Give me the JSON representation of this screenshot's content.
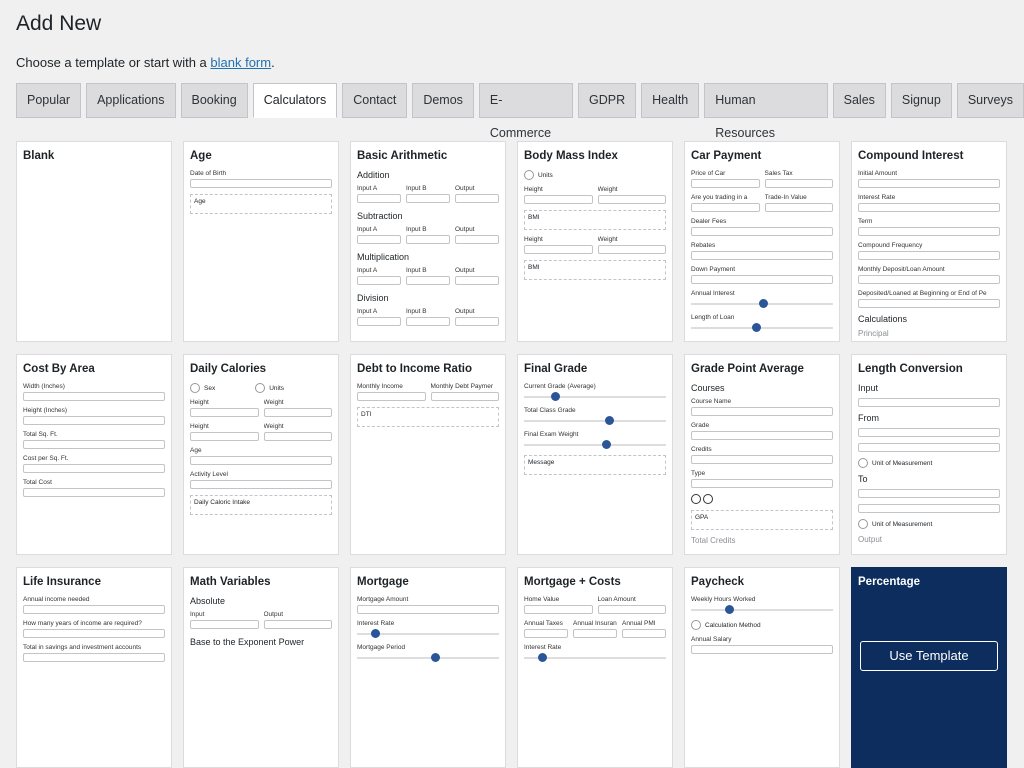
{
  "header": {
    "title": "Add New",
    "intro": "Choose a template or start with a",
    "link": "blank form",
    "end": "."
  },
  "tabs": [
    {
      "label": "Popular",
      "active": false
    },
    {
      "label": "Applications",
      "active": false
    },
    {
      "label": "Booking",
      "active": false
    },
    {
      "label": "Calculators",
      "active": true
    },
    {
      "label": "Contact",
      "active": false
    },
    {
      "label": "Demos",
      "active": false
    },
    {
      "label": "E-Commerce",
      "active": false
    },
    {
      "label": "GDPR",
      "active": false
    },
    {
      "label": "Health",
      "active": false
    },
    {
      "label": "Human Resources",
      "active": false
    },
    {
      "label": "Sales",
      "active": false
    },
    {
      "label": "Signup",
      "active": false
    },
    {
      "label": "Surveys",
      "active": false
    }
  ],
  "cards": [
    {
      "title": "Blank",
      "items": []
    },
    {
      "title": "Age",
      "items": [
        {
          "kind": "field",
          "label": "Date of Birth"
        },
        {
          "kind": "box",
          "text": "Age"
        }
      ]
    },
    {
      "title": "Basic Arithmetic",
      "items": [
        {
          "kind": "heading",
          "text": "Addition"
        },
        {
          "kind": "cols",
          "labels": [
            "Input A",
            "Input B",
            "Output"
          ]
        },
        {
          "kind": "heading",
          "text": "Subtraction"
        },
        {
          "kind": "cols",
          "labels": [
            "Input A",
            "Input B",
            "Output"
          ]
        },
        {
          "kind": "heading",
          "text": "Multiplication"
        },
        {
          "kind": "cols",
          "labels": [
            "Input A",
            "Input B",
            "Output"
          ]
        },
        {
          "kind": "heading",
          "text": "Division"
        },
        {
          "kind": "cols",
          "labels": [
            "Input A",
            "Input B",
            "Output"
          ]
        }
      ]
    },
    {
      "title": "Body Mass Index",
      "items": [
        {
          "kind": "radio",
          "text": "Units"
        },
        {
          "kind": "cols",
          "labels": [
            "Height",
            "Weight"
          ]
        },
        {
          "kind": "box",
          "text": "BMI"
        },
        {
          "kind": "cols",
          "labels": [
            "Height",
            "Weight"
          ]
        },
        {
          "kind": "box",
          "text": "BMI"
        }
      ]
    },
    {
      "title": "Car Payment",
      "items": [
        {
          "kind": "cols",
          "labels": [
            "Price of Car",
            "Sales Tax"
          ]
        },
        {
          "kind": "cols",
          "labels": [
            "Are you trading in a",
            "Trade-In Value"
          ]
        },
        {
          "kind": "field",
          "label": "Dealer Fees"
        },
        {
          "kind": "field",
          "label": "Rebates"
        },
        {
          "kind": "field",
          "label": "Down Payment"
        },
        {
          "kind": "slider",
          "label": "Annual Interest"
        },
        {
          "kind": "slider",
          "label": "Length of Loan"
        }
      ]
    },
    {
      "title": "Compound Interest",
      "items": [
        {
          "kind": "field",
          "label": "Initial Amount"
        },
        {
          "kind": "field",
          "label": "Interest Rate"
        },
        {
          "kind": "field",
          "label": "Term"
        },
        {
          "kind": "field",
          "label": "Compound Frequency"
        },
        {
          "kind": "field",
          "label": "Monthly Deposit/Loan Amount"
        },
        {
          "kind": "field",
          "label": "Deposited/Loaned at Beginning or End of Pe"
        },
        {
          "kind": "heading",
          "text": "Calculations"
        },
        {
          "kind": "faded",
          "text": "Principal"
        }
      ]
    },
    {
      "title": "Cost By Area",
      "items": [
        {
          "kind": "field",
          "label": "Width (Inches)"
        },
        {
          "kind": "field",
          "label": "Height (Inches)"
        },
        {
          "kind": "field",
          "label": "Total Sq. Ft."
        },
        {
          "kind": "field",
          "label": "Cost per Sq. Ft."
        },
        {
          "kind": "field",
          "label": "Total Cost"
        }
      ]
    },
    {
      "title": "Daily Calories",
      "items": [
        {
          "kind": "radios",
          "texts": [
            "Sex",
            "Units"
          ]
        },
        {
          "kind": "cols",
          "labels": [
            "Height",
            "Weight"
          ]
        },
        {
          "kind": "cols",
          "labels": [
            "Height",
            "Weight"
          ]
        },
        {
          "kind": "field",
          "label": "Age"
        },
        {
          "kind": "field",
          "label": "Activity Level"
        },
        {
          "kind": "box",
          "text": "Daily Caloric Intake"
        }
      ]
    },
    {
      "title": "Debt to Income Ratio",
      "items": [
        {
          "kind": "cols",
          "labels": [
            "Monthly Income",
            "Monthly Debt Paymer"
          ]
        },
        {
          "kind": "box",
          "text": "DTI"
        }
      ]
    },
    {
      "title": "Final Grade",
      "items": [
        {
          "kind": "slider",
          "label": "Current Grade (Average)"
        },
        {
          "kind": "slider",
          "label": "Total Class Grade"
        },
        {
          "kind": "slider",
          "label": "Final Exam Weight"
        },
        {
          "kind": "box",
          "text": "Message"
        }
      ]
    },
    {
      "title": "Grade Point Average",
      "items": [
        {
          "kind": "heading",
          "text": "Courses"
        },
        {
          "kind": "field",
          "label": "Course Name"
        },
        {
          "kind": "field",
          "label": "Grade"
        },
        {
          "kind": "field",
          "label": "Credits"
        },
        {
          "kind": "field",
          "label": "Type"
        },
        {
          "kind": "icons"
        },
        {
          "kind": "box",
          "text": "GPA"
        },
        {
          "kind": "faded",
          "text": "Total Credits"
        }
      ]
    },
    {
      "title": "Length Conversion",
      "items": [
        {
          "kind": "heading",
          "text": "Input"
        },
        {
          "kind": "input"
        },
        {
          "kind": "heading",
          "text": "From"
        },
        {
          "kind": "input"
        },
        {
          "kind": "input"
        },
        {
          "kind": "radio",
          "text": "Unit of Measurement"
        },
        {
          "kind": "heading",
          "text": "To"
        },
        {
          "kind": "input"
        },
        {
          "kind": "input"
        },
        {
          "kind": "radio",
          "text": "Unit of Measurement"
        },
        {
          "kind": "faded",
          "text": "Output"
        }
      ]
    },
    {
      "title": "Life Insurance",
      "items": [
        {
          "kind": "field",
          "label": "Annual income needed"
        },
        {
          "kind": "field",
          "label": "How many years of income are required?"
        },
        {
          "kind": "field",
          "label": "Total in savings and investment accounts"
        }
      ]
    },
    {
      "title": "Math Variables",
      "items": [
        {
          "kind": "heading",
          "text": "Absolute"
        },
        {
          "kind": "cols",
          "labels": [
            "Input",
            "Output"
          ]
        },
        {
          "kind": "heading",
          "text": "Base to the Exponent Power"
        }
      ]
    },
    {
      "title": "Mortgage",
      "items": [
        {
          "kind": "field",
          "label": "Mortgage Amount"
        },
        {
          "kind": "slider",
          "label": "Interest Rate"
        },
        {
          "kind": "slider",
          "label": "Mortgage Period"
        }
      ]
    },
    {
      "title": "Mortgage + Costs",
      "items": [
        {
          "kind": "cols",
          "labels": [
            "Home Value",
            "Loan Amount"
          ]
        },
        {
          "kind": "cols",
          "labels": [
            "Annual Taxes",
            "Annual Insurance",
            "Annual PMI"
          ]
        },
        {
          "kind": "slider",
          "label": "Interest Rate"
        }
      ]
    },
    {
      "title": "Paycheck",
      "items": [
        {
          "kind": "slider",
          "label": "Weekly Hours Worked"
        },
        {
          "kind": "radio",
          "text": "Calculation Method"
        },
        {
          "kind": "field",
          "label": "Annual Salary"
        }
      ]
    },
    {
      "title": "Percentage",
      "highlight": true,
      "button": "Use Template",
      "items": []
    }
  ]
}
